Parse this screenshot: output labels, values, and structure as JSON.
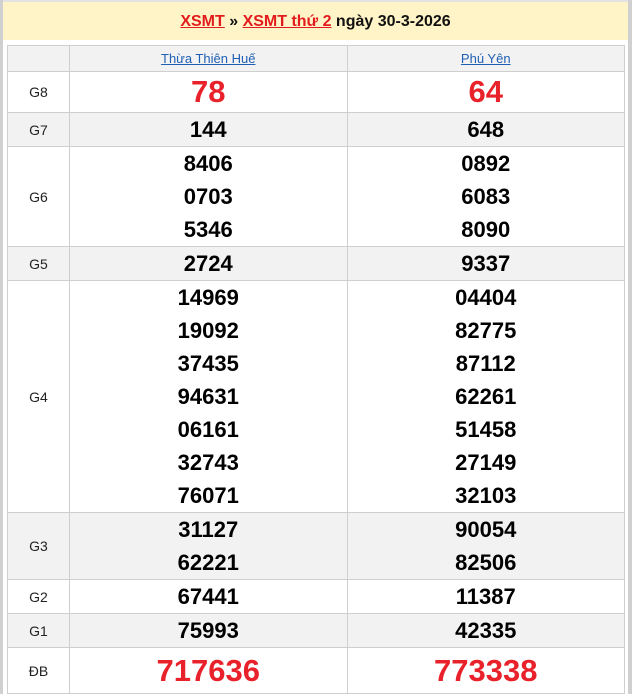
{
  "header": {
    "link1": "XSMT",
    "sep": " » ",
    "link2": "XSMT thứ 2",
    "date": " ngày 30-3-2026"
  },
  "provinces": [
    "Thừa Thiên Huế",
    "Phú Yên"
  ],
  "colors": {
    "accent_red": "#e8212a",
    "link_blue": "#1f5fb5",
    "header_bg": "#fff4c7"
  },
  "rows": [
    {
      "label": "G8",
      "a": [
        "78"
      ],
      "b": [
        "64"
      ]
    },
    {
      "label": "G7",
      "a": [
        "144"
      ],
      "b": [
        "648"
      ]
    },
    {
      "label": "G6",
      "a": [
        "8406",
        "0703",
        "5346"
      ],
      "b": [
        "0892",
        "6083",
        "8090"
      ]
    },
    {
      "label": "G5",
      "a": [
        "2724"
      ],
      "b": [
        "9337"
      ]
    },
    {
      "label": "G4",
      "a": [
        "14969",
        "19092",
        "37435",
        "94631",
        "06161",
        "32743",
        "76071"
      ],
      "b": [
        "04404",
        "82775",
        "87112",
        "62261",
        "51458",
        "27149",
        "32103"
      ]
    },
    {
      "label": "G3",
      "a": [
        "31127",
        "62221"
      ],
      "b": [
        "90054",
        "82506"
      ]
    },
    {
      "label": "G2",
      "a": [
        "67441"
      ],
      "b": [
        "11387"
      ]
    },
    {
      "label": "G1",
      "a": [
        "75993"
      ],
      "b": [
        "42335"
      ]
    },
    {
      "label": "ĐB",
      "a": [
        "717636"
      ],
      "b": [
        "773338"
      ]
    }
  ]
}
